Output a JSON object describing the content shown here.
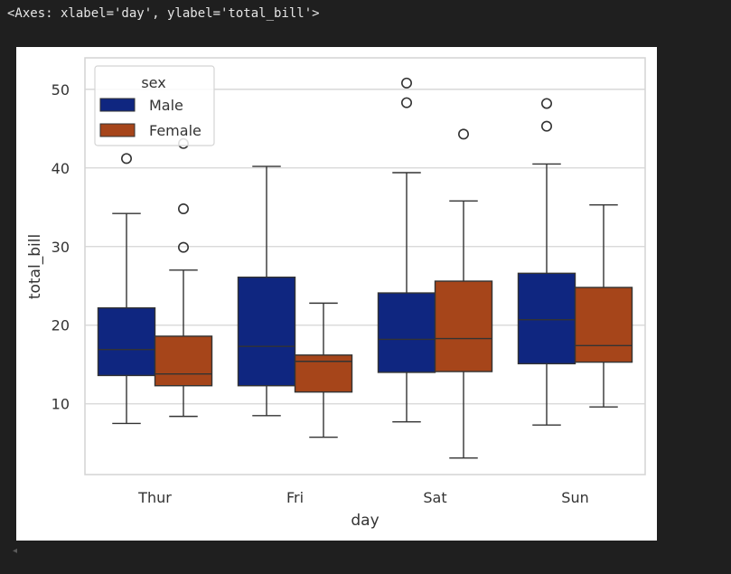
{
  "output": {
    "text": "<Axes: xlabel='day', ylabel='total_bill'>"
  },
  "scroll_arrow": "◂",
  "colors": {
    "page_background": "#1f1f1f",
    "plot_background": "#ffffff",
    "grid": "#d4d4d4",
    "male": "#0f2680",
    "female": "#a6451a",
    "line": "#333333"
  },
  "chart_data": {
    "type": "box",
    "xlabel": "day",
    "ylabel": "total_bill",
    "categories": [
      "Thur",
      "Fri",
      "Sat",
      "Sun"
    ],
    "ylim": [
      1,
      54
    ],
    "yticks": [
      10,
      20,
      30,
      40,
      50
    ],
    "grid": true,
    "legend": {
      "title": "sex",
      "placement": "top-left"
    },
    "series": [
      {
        "name": "Male",
        "color": "#0f2680",
        "boxes": [
          {
            "whisker_low": 7.5,
            "q1": 13.6,
            "median": 16.9,
            "q3": 22.2,
            "whisker_high": 34.2,
            "outliers": [
              41.2
            ]
          },
          {
            "whisker_low": 8.5,
            "q1": 12.3,
            "median": 17.3,
            "q3": 26.1,
            "whisker_high": 40.2,
            "outliers": []
          },
          {
            "whisker_low": 7.7,
            "q1": 14.0,
            "median": 18.2,
            "q3": 24.1,
            "whisker_high": 39.4,
            "outliers": [
              48.3,
              50.8
            ]
          },
          {
            "whisker_low": 7.3,
            "q1": 15.1,
            "median": 20.7,
            "q3": 26.6,
            "whisker_high": 40.5,
            "outliers": [
              45.3,
              48.2
            ]
          }
        ]
      },
      {
        "name": "Female",
        "color": "#a6451a",
        "boxes": [
          {
            "whisker_low": 8.4,
            "q1": 12.3,
            "median": 13.8,
            "q3": 18.6,
            "whisker_high": 27.0,
            "outliers": [
              29.9,
              34.8,
              43.1
            ]
          },
          {
            "whisker_low": 5.75,
            "q1": 11.5,
            "median": 15.4,
            "q3": 16.2,
            "whisker_high": 22.8,
            "outliers": []
          },
          {
            "whisker_low": 3.1,
            "q1": 14.1,
            "median": 18.3,
            "q3": 25.6,
            "whisker_high": 35.8,
            "outliers": [
              44.3
            ]
          },
          {
            "whisker_low": 9.6,
            "q1": 15.3,
            "median": 17.4,
            "q3": 24.8,
            "whisker_high": 35.3,
            "outliers": []
          }
        ]
      }
    ]
  }
}
